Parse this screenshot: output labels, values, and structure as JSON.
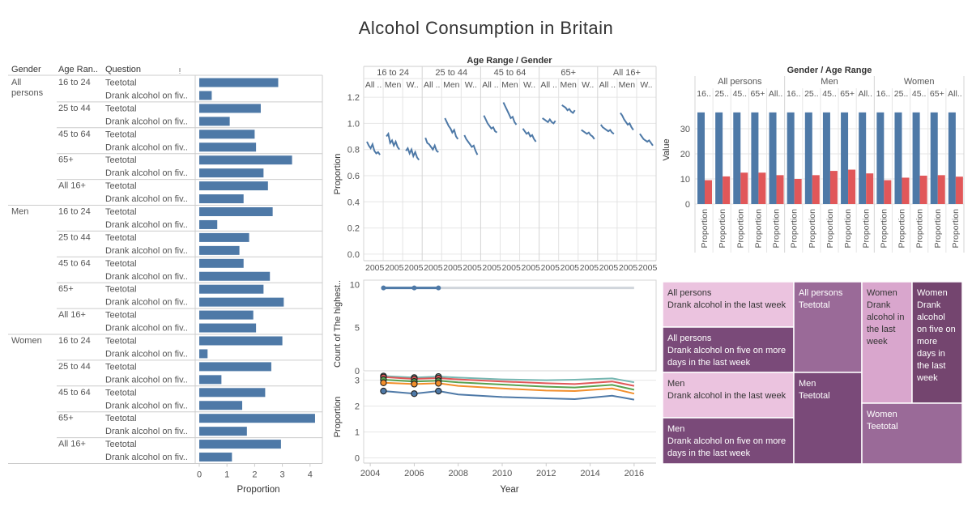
{
  "dashboard": {
    "title": "Alcohol Consumption in Britain"
  },
  "chart_data": [
    {
      "id": "bar-panel",
      "type": "bar",
      "orientation": "horizontal",
      "row_headers": [
        "Gender",
        "Age Ran..",
        "Question"
      ],
      "xlabel": "Proportion",
      "xticks": [
        "0",
        "1",
        "2",
        "3",
        "4"
      ],
      "xlim": [
        0,
        4.3
      ],
      "groups": [
        {
          "gender": "All persons",
          "ages": [
            {
              "age": "16 to 24",
              "rows": [
                {
                  "question": "Teetotal",
                  "value": 2.85
                },
                {
                  "question": "Drank alcohol on fiv..",
                  "value": 0.45
                }
              ]
            },
            {
              "age": "25 to 44",
              "rows": [
                {
                  "question": "Teetotal",
                  "value": 2.22
                },
                {
                  "question": "Drank alcohol on fiv..",
                  "value": 1.1
                }
              ]
            },
            {
              "age": "45 to 64",
              "rows": [
                {
                  "question": "Teetotal",
                  "value": 2.0
                },
                {
                  "question": "Drank alcohol on fiv..",
                  "value": 2.05
                }
              ]
            },
            {
              "age": "65+",
              "rows": [
                {
                  "question": "Teetotal",
                  "value": 3.35
                },
                {
                  "question": "Drank alcohol on fiv..",
                  "value": 2.32
                }
              ]
            },
            {
              "age": "All 16+",
              "rows": [
                {
                  "question": "Teetotal",
                  "value": 2.48
                },
                {
                  "question": "Drank alcohol on fiv..",
                  "value": 1.6
                }
              ]
            }
          ]
        },
        {
          "gender": "Men",
          "ages": [
            {
              "age": "16 to 24",
              "rows": [
                {
                  "question": "Teetotal",
                  "value": 2.65
                },
                {
                  "question": "Drank alcohol on fiv..",
                  "value": 0.65
                }
              ]
            },
            {
              "age": "25 to 44",
              "rows": [
                {
                  "question": "Teetotal",
                  "value": 1.8
                },
                {
                  "question": "Drank alcohol on fiv..",
                  "value": 1.45
                }
              ]
            },
            {
              "age": "45 to 64",
              "rows": [
                {
                  "question": "Teetotal",
                  "value": 1.6
                },
                {
                  "question": "Drank alcohol on fiv..",
                  "value": 2.55
                }
              ]
            },
            {
              "age": "65+",
              "rows": [
                {
                  "question": "Teetotal",
                  "value": 2.32
                },
                {
                  "question": "Drank alcohol on fiv..",
                  "value": 3.05
                }
              ]
            },
            {
              "age": "All 16+",
              "rows": [
                {
                  "question": "Teetotal",
                  "value": 1.95
                },
                {
                  "question": "Drank alcohol on fiv..",
                  "value": 2.05
                }
              ]
            }
          ]
        },
        {
          "gender": "Women",
          "ages": [
            {
              "age": "16 to 24",
              "rows": [
                {
                  "question": "Teetotal",
                  "value": 3.0
                },
                {
                  "question": "Drank alcohol on fiv..",
                  "value": 0.3
                }
              ]
            },
            {
              "age": "25 to 44",
              "rows": [
                {
                  "question": "Teetotal",
                  "value": 2.6
                },
                {
                  "question": "Drank alcohol on fiv..",
                  "value": 0.8
                }
              ]
            },
            {
              "age": "45 to 64",
              "rows": [
                {
                  "question": "Teetotal",
                  "value": 2.38
                },
                {
                  "question": "Drank alcohol on fiv..",
                  "value": 1.55
                }
              ]
            },
            {
              "age": "65+",
              "rows": [
                {
                  "question": "Teetotal",
                  "value": 4.18
                },
                {
                  "question": "Drank alcohol on fiv..",
                  "value": 1.72
                }
              ]
            },
            {
              "age": "All 16+",
              "rows": [
                {
                  "question": "Teetotal",
                  "value": 2.95
                },
                {
                  "question": "Drank alcohol on fiv..",
                  "value": 1.18
                }
              ]
            }
          ]
        }
      ],
      "bar_color": "#4e79a7"
    },
    {
      "id": "sparkline-panel",
      "type": "line",
      "title": "Age Range / Gender",
      "ylabel": "Proportion",
      "ylim": [
        -0.05,
        1.25
      ],
      "yticks": [
        "0.0",
        "0.2",
        "0.4",
        "0.6",
        "0.8",
        "1.0",
        "1.2"
      ],
      "xtick_label": "2005",
      "line_color": "#4e79a7",
      "age_groups": [
        {
          "label": "16 to 24",
          "genders": [
            {
              "label": "All ..",
              "values": [
                0.86,
                0.83,
                0.81,
                0.84,
                0.79,
                0.77,
                0.78,
                0.76
              ]
            },
            {
              "label": "Men",
              "values": [
                0.9,
                0.92,
                0.85,
                0.87,
                0.83,
                0.86,
                0.82,
                0.8
              ]
            },
            {
              "label": "W..",
              "values": [
                0.79,
                0.81,
                0.77,
                0.8,
                0.75,
                0.78,
                0.74,
                0.72
              ]
            }
          ]
        },
        {
          "label": "25 to 44",
          "genders": [
            {
              "label": "All ..",
              "values": [
                0.89,
                0.85,
                0.84,
                0.82,
                0.8,
                0.83,
                0.79,
                0.78
              ]
            },
            {
              "label": "Men",
              "values": [
                1.04,
                1.01,
                0.98,
                0.96,
                0.93,
                0.95,
                0.9,
                0.88
              ]
            },
            {
              "label": "W..",
              "values": [
                0.91,
                0.88,
                0.86,
                0.84,
                0.82,
                0.83,
                0.79,
                0.76
              ]
            }
          ]
        },
        {
          "label": "45 to 64",
          "genders": [
            {
              "label": "All ..",
              "values": [
                1.06,
                1.03,
                1.0,
                0.98,
                0.96,
                0.97,
                0.94,
                0.93
              ]
            },
            {
              "label": "Men",
              "values": [
                1.16,
                1.13,
                1.1,
                1.07,
                1.04,
                1.05,
                1.01,
                0.99
              ]
            },
            {
              "label": "W..",
              "values": [
                0.96,
                0.94,
                0.92,
                0.93,
                0.9,
                0.91,
                0.88,
                0.86
              ]
            }
          ]
        },
        {
          "label": "65+",
          "genders": [
            {
              "label": "All ..",
              "values": [
                1.04,
                1.03,
                1.02,
                1.01,
                1.03,
                1.01,
                1.0,
                1.02
              ]
            },
            {
              "label": "Men",
              "values": [
                1.14,
                1.13,
                1.12,
                1.1,
                1.11,
                1.09,
                1.08,
                1.1
              ]
            },
            {
              "label": "W..",
              "values": [
                0.95,
                0.94,
                0.93,
                0.92,
                0.93,
                0.91,
                0.9,
                0.88
              ]
            }
          ]
        },
        {
          "label": "All 16+",
          "genders": [
            {
              "label": "All ..",
              "values": [
                0.99,
                0.97,
                0.96,
                0.95,
                0.94,
                0.95,
                0.93,
                0.92
              ]
            },
            {
              "label": "Men",
              "values": [
                1.08,
                1.06,
                1.03,
                1.01,
                0.99,
                1.0,
                0.97,
                0.95
              ]
            },
            {
              "label": "W..",
              "values": [
                0.92,
                0.9,
                0.88,
                0.87,
                0.86,
                0.87,
                0.85,
                0.83
              ]
            }
          ]
        }
      ]
    },
    {
      "id": "grouped-bar-panel",
      "type": "bar",
      "title": "Gender / Age Range",
      "ylabel": "Value",
      "ylim": [
        0,
        40
      ],
      "yticks": [
        "0",
        "10",
        "20",
        "30"
      ],
      "gender_groups": [
        {
          "label": "All persons",
          "ages": [
            "16..",
            "25..",
            "45..",
            "65+",
            "All.."
          ]
        },
        {
          "label": "Men",
          "ages": [
            "16..",
            "25..",
            "45..",
            "65+",
            "All.."
          ]
        },
        {
          "label": "Women",
          "ages": [
            "16..",
            "25..",
            "45..",
            "65+",
            "All.."
          ]
        }
      ],
      "measure_label": "Proportion",
      "series": [
        {
          "values": [
            36.5,
            36.5,
            36.5,
            36.5,
            36.5,
            36.5,
            36.5,
            36.5,
            36.5,
            36.5,
            36.5,
            36.5,
            36.5,
            36.5,
            36.5
          ],
          "color": "#4e79a7"
        },
        {
          "values": [
            9.5,
            11,
            12.5,
            12.5,
            11.5,
            10,
            11.5,
            13.2,
            13.7,
            12.2,
            9.5,
            10.5,
            11.3,
            11.5,
            10.9
          ],
          "color": "#e15759"
        }
      ]
    },
    {
      "id": "count-panel",
      "type": "line",
      "ylabel": "Count of The highest..",
      "ylim": [
        0,
        10.5
      ],
      "yticks": [
        "0",
        "5",
        "10"
      ],
      "series": [
        {
          "x": [
            2004.6,
            2006.0,
            2007.1
          ],
          "y": [
            9.6,
            9.6,
            9.6
          ],
          "color": "#4e79a7"
        },
        {
          "x": [
            2007.1,
            2016.0
          ],
          "y": [
            9.6,
            9.6
          ],
          "color": "#d0d5db"
        }
      ]
    },
    {
      "id": "trend-panel",
      "type": "line",
      "xlabel": "Year",
      "ylabel": "Proportion",
      "xlim": [
        2003.7,
        2017.0
      ],
      "ylim": [
        -0.2,
        3.3
      ],
      "xticks": [
        "2004",
        "2006",
        "2008",
        "2010",
        "2012",
        "2014",
        "2016"
      ],
      "yticks": [
        "0",
        "1",
        "2",
        "3"
      ],
      "series": [
        {
          "x": [
            2004.6,
            2006.0,
            2007.1,
            2008,
            2010,
            2012,
            2013.3,
            2015,
            2016
          ],
          "y": [
            3.16,
            3.1,
            3.14,
            3.1,
            3.03,
            3.0,
            3.02,
            3.07,
            2.92
          ],
          "color": "#76b7b2"
        },
        {
          "x": [
            2004.6,
            2006.0,
            2007.1,
            2008,
            2010,
            2012,
            2013.3,
            2015,
            2016
          ],
          "y": [
            3.12,
            3.05,
            3.08,
            3.03,
            2.95,
            2.88,
            2.85,
            2.95,
            2.78
          ],
          "color": "#e15759"
        },
        {
          "x": [
            2004.6,
            2006.0,
            2007.1,
            2008,
            2010,
            2012,
            2013.3,
            2015,
            2016
          ],
          "y": [
            3.02,
            2.95,
            2.98,
            2.92,
            2.83,
            2.75,
            2.72,
            2.82,
            2.63
          ],
          "color": "#59a14f"
        },
        {
          "x": [
            2004.6,
            2006.0,
            2007.1,
            2008,
            2010,
            2012,
            2013.3,
            2015,
            2016
          ],
          "y": [
            2.9,
            2.85,
            2.88,
            2.78,
            2.68,
            2.6,
            2.58,
            2.68,
            2.48
          ],
          "color": "#f28e2b"
        },
        {
          "x": [
            2004.6,
            2006.0,
            2007.1,
            2008,
            2010,
            2012,
            2013.3,
            2015,
            2016
          ],
          "y": [
            2.58,
            2.48,
            2.58,
            2.45,
            2.35,
            2.3,
            2.27,
            2.4,
            2.25
          ],
          "color": "#4e79a7"
        }
      ],
      "marker_years": [
        2004.6,
        2006.0,
        2007.1
      ]
    },
    {
      "id": "treemap-panel",
      "type": "treemap",
      "tiles": [
        {
          "lines": [
            "All persons",
            "Drank alcohol in the last week"
          ],
          "color": "#ebc3df",
          "text_color": "#333333"
        },
        {
          "lines": [
            "All persons",
            "Drank alcohol on five on more",
            "days in the last week"
          ],
          "color": "#7a4a79",
          "text_color": "#ffffff"
        },
        {
          "lines": [
            "Men",
            "Drank alcohol in the last week"
          ],
          "color": "#ebc3df",
          "text_color": "#333333"
        },
        {
          "lines": [
            "Men",
            "Drank alcohol on five on more",
            "days in the last week"
          ],
          "color": "#7a4a79",
          "text_color": "#ffffff"
        },
        {
          "lines": [
            "All persons",
            "Teetotal"
          ],
          "color": "#9a6a98",
          "text_color": "#ffffff"
        },
        {
          "lines": [
            "Men",
            "Teetotal"
          ],
          "color": "#7a4a79",
          "text_color": "#ffffff"
        },
        {
          "lines": [
            "Women",
            "Drank",
            "alcohol in",
            "the last",
            "week"
          ],
          "color": "#d9a6cd",
          "text_color": "#333333"
        },
        {
          "lines": [
            "Women",
            "Drank",
            "alcohol",
            "on five on",
            "more",
            "days in",
            "the last",
            "week"
          ],
          "color": "#74456f",
          "text_color": "#ffffff"
        },
        {
          "lines": [
            "Women",
            "Teetotal"
          ],
          "color": "#9a6a98",
          "text_color": "#ffffff"
        }
      ]
    }
  ]
}
